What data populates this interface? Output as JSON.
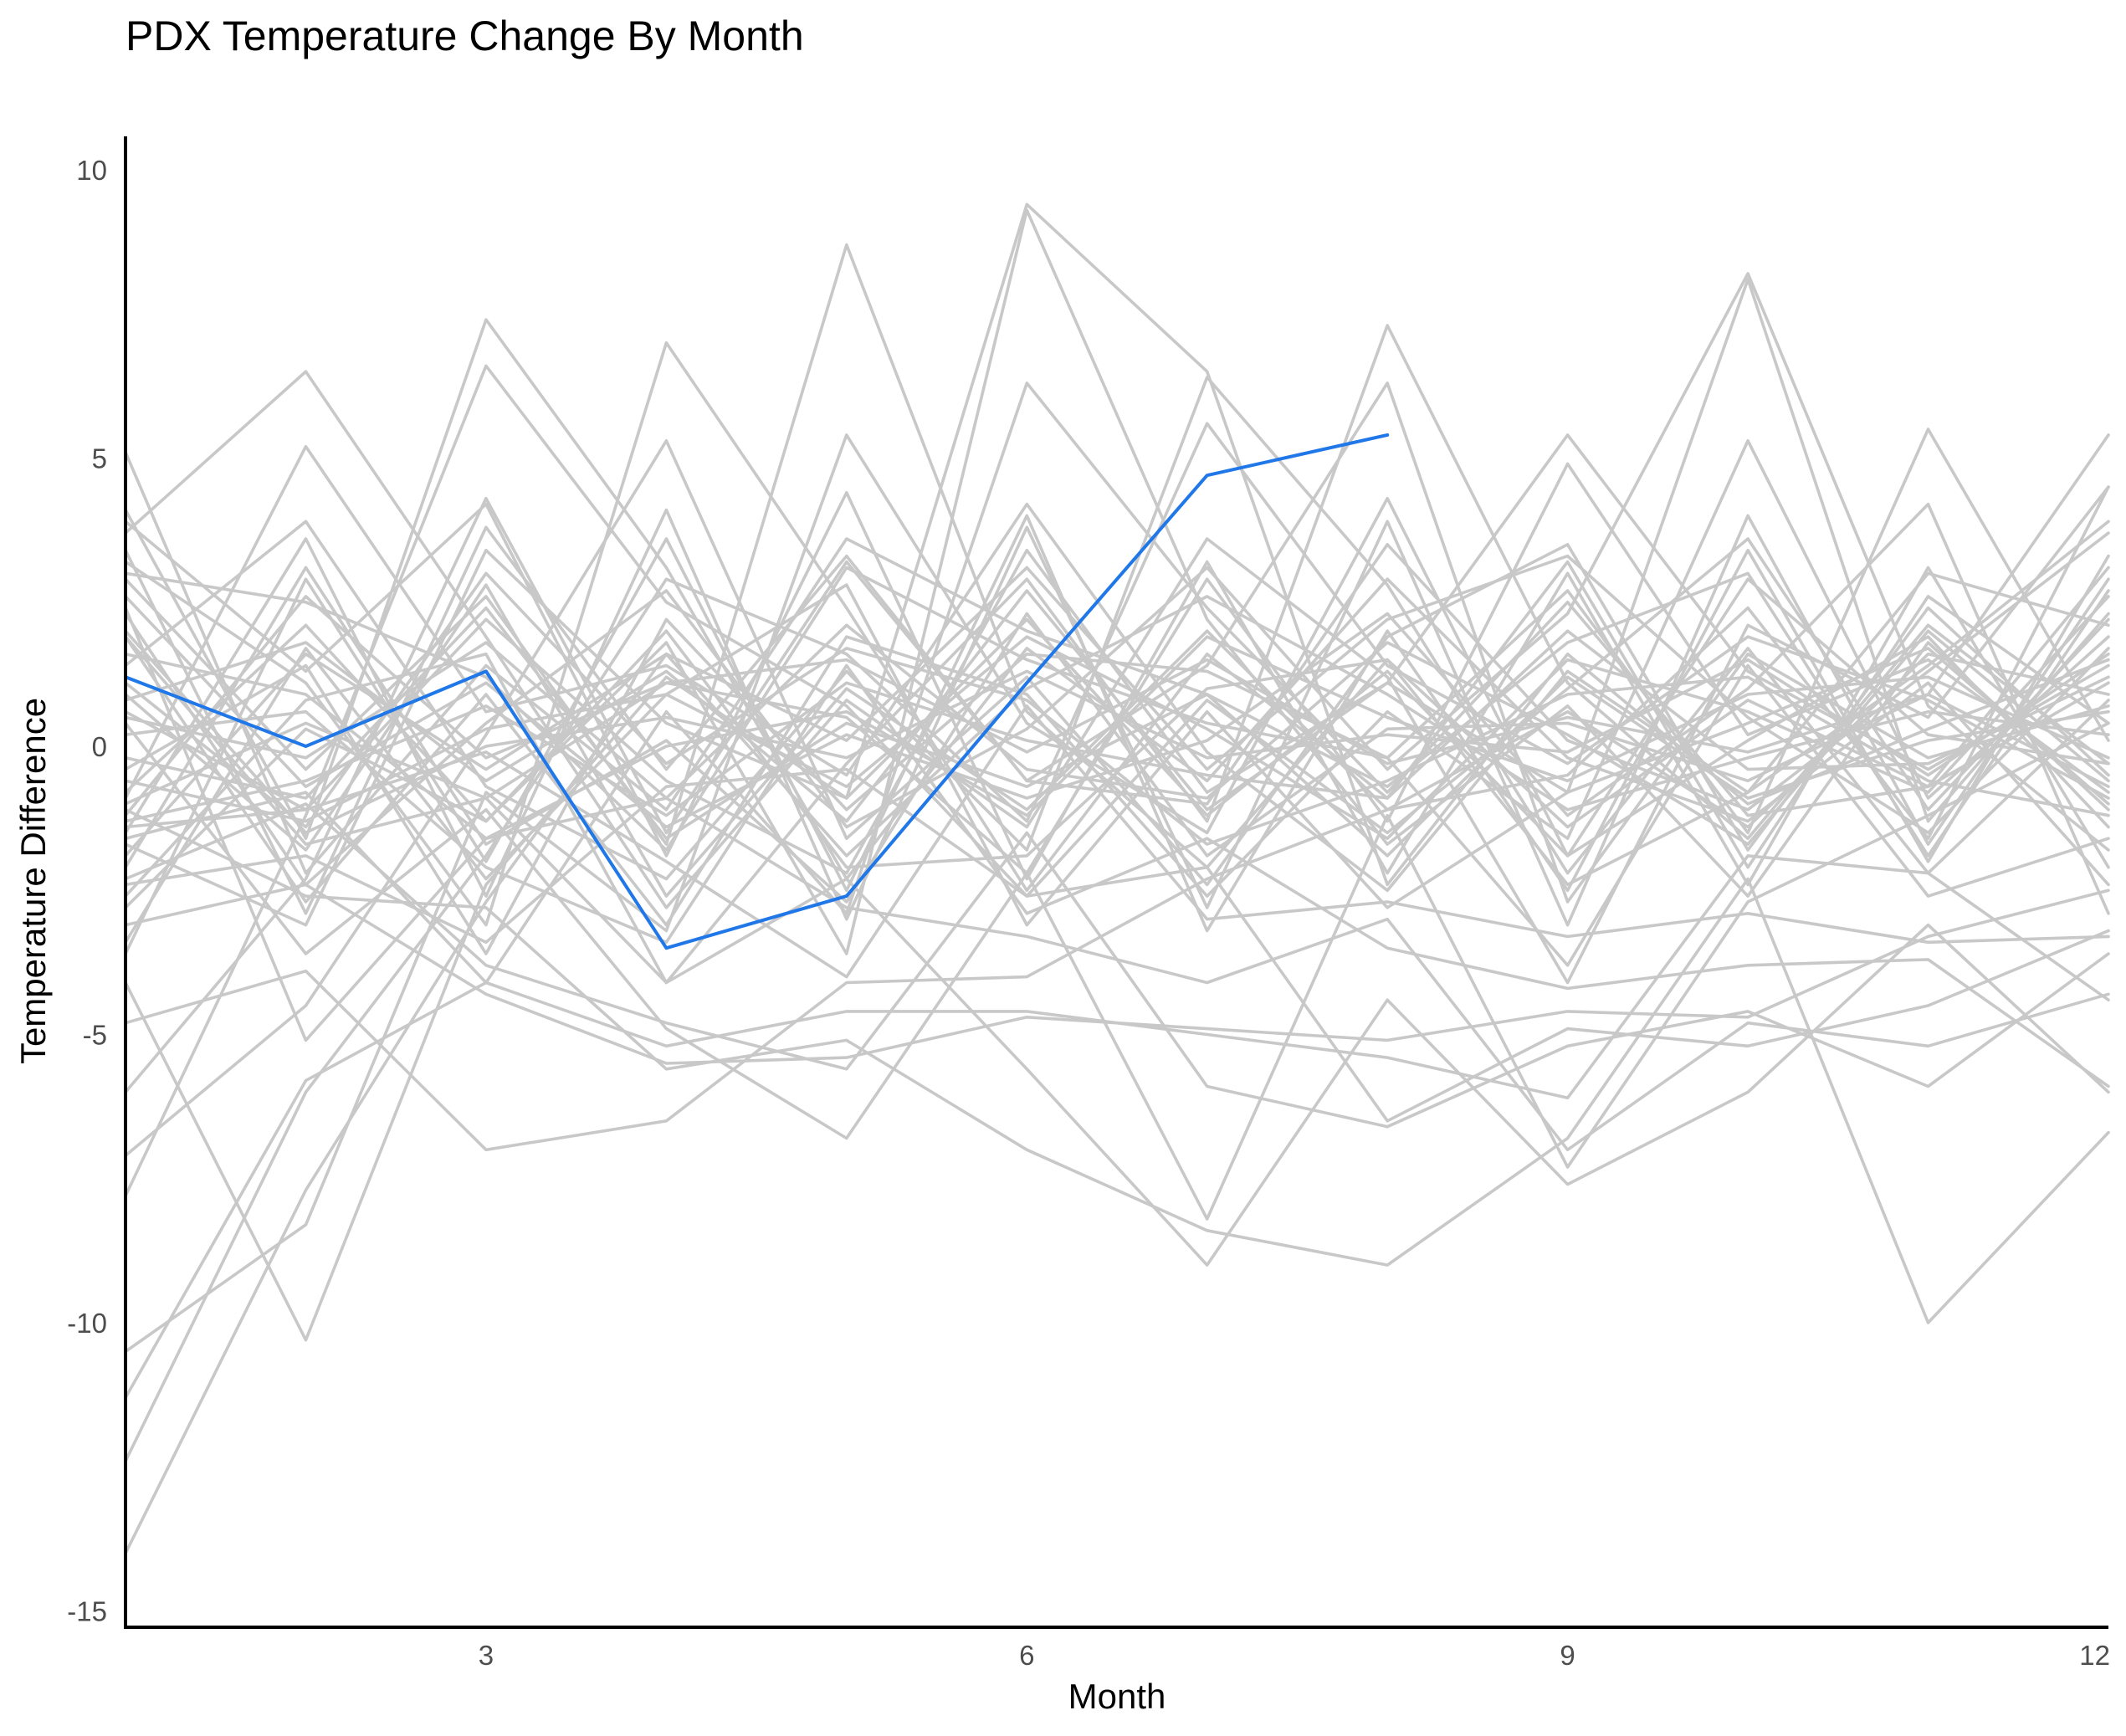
{
  "chart_data": {
    "type": "line",
    "title": "PDX Temperature Change By Month",
    "xlabel": "Month",
    "ylabel": "Temperature Difference",
    "xlim": [
      1,
      12
    ],
    "ylim": [
      -15,
      10.5
    ],
    "x_ticks": [
      3,
      6,
      9,
      12
    ],
    "y_ticks": [
      -15,
      -10,
      -5,
      0,
      5,
      10
    ],
    "grid": false,
    "legend": "none",
    "colors": {
      "background_series": "#c8c8c8",
      "highlight": "#1f77e8",
      "axis": "#000000",
      "tick_text": "#4d4d4d"
    },
    "highlight_series": {
      "x": [
        1,
        2,
        3,
        4,
        5,
        6,
        7,
        8
      ],
      "values": [
        1.2,
        0.0,
        1.3,
        -3.5,
        -2.6,
        1.1,
        4.7,
        5.4
      ]
    },
    "x": [
      1,
      2,
      3,
      4,
      5,
      6,
      7,
      8,
      9,
      10,
      11,
      12
    ],
    "series": [
      {
        "values": [
          5.1,
          -2.2,
          1.4,
          -1.1,
          3.6,
          2.0,
          0.9,
          -0.7,
          1.8,
          3.0,
          -1.9,
          2.7
        ]
      },
      {
        "values": [
          3.7,
          6.5,
          1.9,
          -2.8,
          0.8,
          -1.4,
          3.6,
          1.2,
          -4.1,
          2.1,
          0.5,
          4.5
        ]
      },
      {
        "values": [
          4.1,
          -1.6,
          7.4,
          3.1,
          -2.3,
          1.7,
          -0.6,
          2.9,
          -0.2,
          -1.3,
          1.1,
          -2.4
        ]
      },
      {
        "values": [
          3.2,
          1.1,
          -3.1,
          7.0,
          2.4,
          -2.5,
          1.6,
          -0.9,
          3.2,
          -2.1,
          2.6,
          0.4
        ]
      },
      {
        "values": [
          2.9,
          -0.4,
          2.6,
          -1.7,
          8.7,
          0.6,
          -2.1,
          1.5,
          -1.4,
          0.8,
          -0.7,
          3.1
        ]
      },
      {
        "values": [
          -0.8,
          2.1,
          -1.3,
          1.8,
          -3.6,
          9.3,
          2.2,
          -1.7,
          0.7,
          -2.6,
          1.8,
          -1.1
        ]
      },
      {
        "values": [
          -1.7,
          -3.1,
          3.4,
          0.4,
          -0.9,
          9.4,
          6.5,
          -2.4,
          1.6,
          -1.0,
          0.3,
          1.5
        ]
      },
      {
        "values": [
          1.4,
          3.9,
          -0.7,
          -2.3,
          1.3,
          -1.8,
          6.4,
          2.8,
          -2.2,
          1.7,
          -2.2,
          0.8
        ]
      },
      {
        "values": [
          -2.6,
          0.8,
          1.6,
          -4.1,
          -0.3,
          2.9,
          -1.3,
          7.3,
          1.1,
          -1.6,
          2.1,
          -0.3
        ]
      },
      {
        "values": [
          2.3,
          -2.4,
          0.4,
          2.7,
          -1.4,
          0.3,
          3.1,
          -0.4,
          2.3,
          8.2,
          0.7,
          -1.8
        ]
      },
      {
        "values": [
          -3.4,
          1.7,
          -2.3,
          0.9,
          2.8,
          -3.1,
          0.6,
          -2.8,
          -0.8,
          8.1,
          -1.3,
          2.3
        ]
      },
      {
        "values": [
          0.6,
          -1.1,
          2.2,
          -0.6,
          -2.2,
          3.4,
          -0.8,
          1.1,
          5.4,
          1.3,
          -0.4,
          1.4
        ]
      },
      {
        "values": [
          -1.2,
          2.6,
          -0.2,
          1.1,
          0.5,
          -2.2,
          2.9,
          -1.3,
          4.9,
          0.2,
          1.5,
          -0.8
        ]
      },
      {
        "values": [
          1.9,
          -2.7,
          0.9,
          -3.1,
          1.9,
          0.9,
          -2.6,
          0.6,
          -1.6,
          5.3,
          -0.9,
          1.9
        ]
      },
      {
        "values": [
          -0.4,
          1.4,
          -3.6,
          2.2,
          -1.1,
          1.6,
          1.3,
          -0.2,
          2.7,
          -1.5,
          5.5,
          0.1
        ]
      },
      {
        "values": [
          2.6,
          -0.7,
          1.1,
          -1.4,
          0.2,
          -0.9,
          0.1,
          2.3,
          -1.2,
          1.0,
          4.2,
          -2.9
        ]
      },
      {
        "values": [
          -2.1,
          3.1,
          -1.7,
          0.1,
          -2.7,
          2.3,
          -1.9,
          0.3,
          0.4,
          -0.6,
          0.9,
          5.4
        ]
      },
      {
        "values": [
          0.9,
          -1.8,
          2.8,
          -2.6,
          1.0,
          -1.1,
          2.0,
          -1.1,
          -0.5,
          2.4,
          -1.6,
          4.5
        ]
      },
      {
        "values": [
          -0.9,
          5.2,
          0.6,
          1.4,
          -0.5,
          4.2,
          -0.1,
          -2.5,
          1.3,
          -0.8,
          1.4,
          3.9
        ]
      },
      {
        "values": [
          -6.0,
          -2.3,
          4.3,
          -1.5,
          3.2,
          -0.6,
          1.4,
          6.3,
          -2.7,
          1.6,
          -0.2,
          0.7
        ]
      },
      {
        "values": [
          -7.1,
          -4.5,
          0.2,
          5.3,
          -1.6,
          1.2,
          -2.4,
          1.9,
          3.5,
          -1.8,
          2.4,
          -0.5
        ]
      },
      {
        "values": [
          -7.8,
          -1.2,
          6.6,
          2.5,
          0.7,
          -2.6,
          0.8,
          -1.5,
          1.0,
          3.6,
          -1.1,
          2.2
        ]
      },
      {
        "values": [
          -10.5,
          -8.3,
          -0.8,
          -3.2,
          5.4,
          0.4,
          -1.5,
          4.3,
          -1.9,
          0.1,
          1.9,
          -1.4
        ]
      },
      {
        "values": [
          -11.3,
          -5.8,
          -4.1,
          0.6,
          -2.9,
          6.3,
          2.4,
          -0.8,
          2.5,
          -1.2,
          -0.7,
          1.1
        ]
      },
      {
        "values": [
          -12.4,
          -6.0,
          -1.9,
          2.9,
          1.6,
          -1.3,
          5.6,
          1.4,
          -0.3,
          1.9,
          0.8,
          -0.9
        ]
      },
      {
        "values": [
          -14.0,
          -7.7,
          -2.7,
          1.6,
          0.1,
          3.1,
          -0.4,
          2.2,
          3.3,
          0.5,
          -1.5,
          1.7
        ]
      },
      {
        "values": [
          -4.1,
          -10.3,
          -2.4,
          1.2,
          -0.9,
          2.2,
          -1.2,
          1.3,
          -1.9,
          2.9,
          0.2,
          -0.3
        ]
      },
      {
        "values": [
          -4.8,
          -3.9,
          -7.0,
          -6.5,
          -4.1,
          -4.0,
          -2.3,
          -1.1,
          0.6,
          -1.4,
          1.6,
          0.9
        ]
      },
      {
        "values": [
          -3.1,
          -2.4,
          -4.3,
          -5.5,
          -5.4,
          -4.7,
          -4.9,
          -5.1,
          -4.6,
          -4.7,
          -3.3,
          -2.5
        ]
      },
      {
        "values": [
          -1.6,
          -0.8,
          -4.1,
          -5.2,
          -4.6,
          -4.6,
          -5.0,
          -5.4,
          -6.1,
          -1.9,
          -2.2,
          -4.4
        ]
      },
      {
        "values": [
          0.4,
          -3.6,
          -1.1,
          -4.9,
          -6.8,
          -2.2,
          -8.2,
          -1.2,
          -7.3,
          -2.7,
          -1.2,
          0.4
        ]
      },
      {
        "values": [
          -1.1,
          -2.6,
          -2.8,
          -5.6,
          -5.1,
          -7.0,
          -8.4,
          -9.0,
          -6.8,
          -2.3,
          -10.0,
          -6.7
        ]
      },
      {
        "values": [
          1.9,
          -1.7,
          -0.9,
          -4.1,
          -2.3,
          -5.6,
          -9.0,
          -4.4,
          -7.6,
          -6.0,
          -3.1,
          -6.0
        ]
      },
      {
        "values": [
          -2.3,
          -1.0,
          -3.8,
          -4.8,
          -5.6,
          -1.5,
          -5.9,
          -6.6,
          -5.2,
          -4.6,
          -5.9,
          -3.6
        ]
      },
      {
        "values": [
          2.4,
          -5.1,
          -1.6,
          -0.9,
          -2.8,
          -3.3,
          -4.1,
          -3.0,
          -7.0,
          -4.8,
          -5.2,
          -4.3
        ]
      },
      {
        "values": [
          -2.4,
          -1.9,
          -3.4,
          -0.7,
          -0.4,
          -2.6,
          -2.1,
          -6.5,
          -4.9,
          -5.2,
          -4.5,
          -3.2
        ]
      },
      {
        "values": [
          0.2,
          0.6,
          -2.1,
          -3.4,
          1.4,
          -2.9,
          -1.6,
          -3.5,
          -4.2,
          -3.8,
          -3.7,
          -5.9
        ]
      },
      {
        "values": [
          -1.4,
          -1.1,
          -0.1,
          -2.0,
          -4.0,
          0.7,
          -3.0,
          -2.7,
          -3.3,
          -2.9,
          -3.4,
          -3.3
        ]
      },
      {
        "values": [
          3.0,
          2.5,
          1.2,
          -1.8,
          3.1,
          1.5,
          0.4,
          -0.2,
          -3.8,
          1.4,
          -2.6,
          -1.6
        ]
      },
      {
        "values": [
          -2.8,
          0.3,
          -1.3,
          2.0,
          -2.1,
          -1.9,
          1.0,
          1.5,
          -2.4,
          -0.8,
          3.0,
          2.1
        ]
      },
      {
        "values": [
          1.1,
          -1.4,
          3.0,
          -0.3,
          1.7,
          0.8,
          -1.7,
          -0.6,
          0.9,
          1.2,
          -0.6,
          -1.2
        ]
      },
      {
        "values": [
          -1.9,
          1.6,
          -0.4,
          1.6,
          -1.9,
          1.0,
          2.6,
          0.9,
          -1.1,
          -0.2,
          0.6,
          0.2
        ]
      },
      {
        "values": [
          0.5,
          -0.2,
          1.8,
          -0.9,
          2.1,
          -0.4,
          -0.9,
          1.8,
          0.2,
          -1.7,
          2.0,
          -0.6
        ]
      },
      {
        "values": [
          -0.6,
          -1.3,
          0.3,
          0.9,
          -0.7,
          1.9,
          0.3,
          -1.6,
          1.5,
          0.6,
          -0.8,
          2.6
        ]
      },
      {
        "values": [
          1.6,
          0.9,
          -1.6,
          0.0,
          0.6,
          -1.2,
          1.9,
          0.5,
          -0.6,
          0.9,
          1.2,
          -0.2
        ]
      },
      {
        "values": [
          -1.3,
          -0.6,
          0.7,
          -1.2,
          1.1,
          0.1,
          -0.5,
          -0.9,
          2.0,
          -0.4,
          -0.3,
          1.2
        ]
      },
      {
        "values": [
          0.8,
          1.8,
          -0.6,
          1.3,
          -1.3,
          2.7,
          -1.1,
          1.1,
          -0.8,
          0.4,
          1.7,
          -1.0
        ]
      },
      {
        "values": [
          -0.2,
          -0.9,
          2.4,
          -1.6,
          0.4,
          -0.7,
          0.9,
          -1.9,
          1.2,
          -0.9,
          0.1,
          0.6
        ]
      },
      {
        "values": [
          2.0,
          -1.5,
          0.0,
          0.5,
          -0.2,
          1.3,
          -0.2,
          0.2,
          -0.1,
          1.5,
          -0.5,
          1.6
        ]
      },
      {
        "values": [
          -1.0,
          0.4,
          -0.9,
          1.1,
          1.5,
          -0.1,
          1.5,
          -0.3,
          0.5,
          -0.1,
          0.9,
          -0.7
        ]
      },
      {
        "values": [
          3.4,
          -2.9,
          3.8,
          -0.4,
          3.3,
          -0.6,
          -1.0,
          3.5,
          0.1,
          -1.1,
          1.3,
          3.7
        ]
      },
      {
        "values": [
          -3.6,
          2.9,
          -2.0,
          3.6,
          -2.5,
          4.0,
          -3.2,
          2.0,
          -2.5,
          3.4,
          -2.0,
          3.3
        ]
      },
      {
        "values": [
          -1.5,
          3.6,
          -2.6,
          4.1,
          -3.0,
          3.8,
          -2.8,
          3.9,
          -3.1,
          4.0,
          -1.7,
          2.9
        ]
      },
      {
        "values": [
          3.9,
          1.3,
          4.2,
          -1.9,
          4.4,
          -2.3,
          3.2,
          -2.2,
          3.0,
          -2.4,
          3.1,
          -2.1
        ]
      }
    ]
  }
}
